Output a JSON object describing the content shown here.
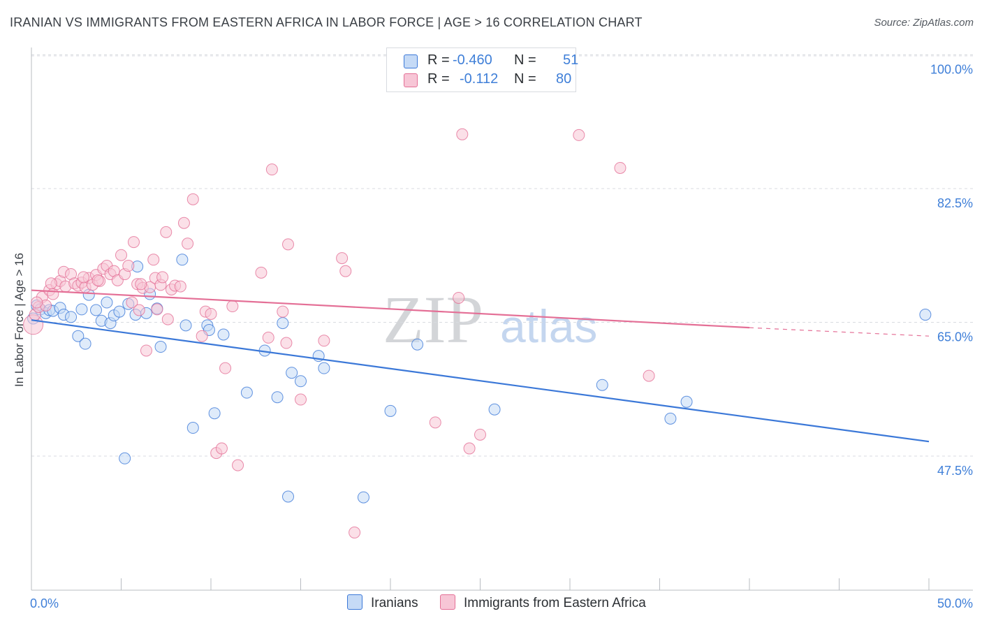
{
  "header": {
    "title": "IRANIAN VS IMMIGRANTS FROM EASTERN AFRICA IN LABOR FORCE | AGE > 16 CORRELATION CHART",
    "source": "Source: ZipAtlas.com"
  },
  "legend": {
    "rows": [
      {
        "r_label": "R =",
        "r_value": "-0.460",
        "n_label": "N =",
        "n_value": "51"
      },
      {
        "r_label": "R =",
        "r_value": "-0.112",
        "n_label": "N =",
        "n_value": "80"
      }
    ]
  },
  "watermark": {
    "part1": "ZIP",
    "part2": "atlas"
  },
  "colors": {
    "blue": "#3b78d8",
    "blue_fill": "#c5daf6",
    "pink": "#e46f96",
    "pink_fill": "#f7c6d6",
    "axis_text": "#3f7fd8",
    "grid": "#d8dbe0"
  },
  "chart_data": {
    "type": "scatter",
    "title": "IRANIAN VS IMMIGRANTS FROM EASTERN AFRICA IN LABOR FORCE | AGE > 16 CORRELATION CHART",
    "xlabel": "",
    "ylabel": "In Labor Force | Age > 16",
    "xlim": [
      0,
      50
    ],
    "ylim": [
      32.5,
      102
    ],
    "x_tick_labels": [
      "0.0%",
      "50.0%"
    ],
    "y_ticks": [
      47.5,
      65.0,
      82.5,
      100.0
    ],
    "y_tick_labels": [
      "47.5%",
      "65.0%",
      "82.5%",
      "100.0%"
    ],
    "grid": true,
    "legend_position": "bottom",
    "series": [
      {
        "name": "Iranians",
        "color": "#3b78d8",
        "r": -0.46,
        "n": 51,
        "trend": {
          "x0": 0,
          "y0": 65.3,
          "x1": 50,
          "y1": 49.4
        },
        "points": [
          [
            0.1,
            65.5
          ],
          [
            0.3,
            67.2
          ],
          [
            0.5,
            66.7
          ],
          [
            0.8,
            66.2
          ],
          [
            1.0,
            66.6
          ],
          [
            1.2,
            66.5
          ],
          [
            1.6,
            66.9
          ],
          [
            1.8,
            66.0
          ],
          [
            2.2,
            65.7
          ],
          [
            2.6,
            63.2
          ],
          [
            2.8,
            66.7
          ],
          [
            3.0,
            62.2
          ],
          [
            3.2,
            68.6
          ],
          [
            3.6,
            66.6
          ],
          [
            3.9,
            65.2
          ],
          [
            4.2,
            67.6
          ],
          [
            4.4,
            64.9
          ],
          [
            4.6,
            65.9
          ],
          [
            4.9,
            66.4
          ],
          [
            5.2,
            47.2
          ],
          [
            5.4,
            67.4
          ],
          [
            5.8,
            66.0
          ],
          [
            5.9,
            72.3
          ],
          [
            6.4,
            66.2
          ],
          [
            6.6,
            68.7
          ],
          [
            7.0,
            66.8
          ],
          [
            7.2,
            61.8
          ],
          [
            8.4,
            73.2
          ],
          [
            8.6,
            64.6
          ],
          [
            9.0,
            51.2
          ],
          [
            9.8,
            64.6
          ],
          [
            9.9,
            64.0
          ],
          [
            10.2,
            53.1
          ],
          [
            10.7,
            63.4
          ],
          [
            12.0,
            55.8
          ],
          [
            13.0,
            61.3
          ],
          [
            13.7,
            55.2
          ],
          [
            14.0,
            64.9
          ],
          [
            14.3,
            42.2
          ],
          [
            14.5,
            58.4
          ],
          [
            15.0,
            57.3
          ],
          [
            16.0,
            60.6
          ],
          [
            16.3,
            59.0
          ],
          [
            18.5,
            42.1
          ],
          [
            20.0,
            53.4
          ],
          [
            21.5,
            62.1
          ],
          [
            25.8,
            53.6
          ],
          [
            31.8,
            56.8
          ],
          [
            35.6,
            52.4
          ],
          [
            36.5,
            54.6
          ],
          [
            49.8,
            66.0
          ]
        ]
      },
      {
        "name": "Immigrants from Eastern Africa",
        "color": "#e46f96",
        "r": -0.112,
        "n": 80,
        "trend": {
          "x0": 0,
          "y0": 69.2,
          "x1": 40,
          "y1": 64.3
        },
        "trend_dashed_to": {
          "x": 50,
          "y": 63.2
        },
        "points": [
          [
            0.1,
            64.7
          ],
          [
            0.2,
            66.0
          ],
          [
            0.4,
            67.0
          ],
          [
            0.6,
            68.3
          ],
          [
            0.8,
            67.2
          ],
          [
            1.0,
            69.2
          ],
          [
            1.2,
            68.7
          ],
          [
            1.4,
            70.0
          ],
          [
            1.6,
            70.4
          ],
          [
            1.8,
            71.6
          ],
          [
            1.9,
            69.7
          ],
          [
            2.2,
            71.3
          ],
          [
            2.4,
            70.1
          ],
          [
            2.6,
            69.8
          ],
          [
            2.8,
            70.2
          ],
          [
            3.0,
            69.6
          ],
          [
            3.2,
            70.8
          ],
          [
            3.4,
            69.9
          ],
          [
            3.6,
            71.2
          ],
          [
            3.8,
            70.4
          ],
          [
            4.0,
            72.0
          ],
          [
            4.2,
            72.4
          ],
          [
            4.4,
            71.3
          ],
          [
            4.6,
            71.7
          ],
          [
            4.8,
            70.5
          ],
          [
            5.0,
            73.8
          ],
          [
            5.2,
            71.3
          ],
          [
            5.4,
            72.4
          ],
          [
            5.6,
            67.6
          ],
          [
            5.7,
            75.5
          ],
          [
            5.9,
            70.0
          ],
          [
            6.0,
            66.6
          ],
          [
            6.2,
            69.5
          ],
          [
            6.4,
            61.3
          ],
          [
            6.6,
            69.6
          ],
          [
            6.8,
            73.2
          ],
          [
            6.9,
            70.8
          ],
          [
            7.0,
            66.7
          ],
          [
            7.2,
            69.9
          ],
          [
            7.3,
            70.9
          ],
          [
            7.5,
            76.8
          ],
          [
            7.6,
            65.4
          ],
          [
            7.8,
            69.3
          ],
          [
            8.0,
            69.8
          ],
          [
            8.3,
            69.7
          ],
          [
            8.5,
            78.0
          ],
          [
            8.7,
            75.3
          ],
          [
            9.0,
            81.1
          ],
          [
            9.5,
            63.2
          ],
          [
            9.7,
            66.4
          ],
          [
            10.0,
            66.1
          ],
          [
            10.3,
            47.9
          ],
          [
            10.6,
            48.5
          ],
          [
            10.8,
            59.0
          ],
          [
            11.2,
            67.1
          ],
          [
            11.5,
            46.3
          ],
          [
            12.8,
            71.5
          ],
          [
            13.2,
            63.0
          ],
          [
            13.4,
            85.0
          ],
          [
            14.0,
            66.4
          ],
          [
            14.2,
            62.3
          ],
          [
            14.3,
            75.2
          ],
          [
            15.0,
            54.9
          ],
          [
            16.3,
            62.6
          ],
          [
            17.3,
            73.4
          ],
          [
            17.5,
            71.7
          ],
          [
            18.0,
            37.5
          ],
          [
            22.5,
            51.9
          ],
          [
            23.8,
            68.2
          ],
          [
            24.0,
            89.6
          ],
          [
            24.4,
            48.5
          ],
          [
            25.0,
            50.3
          ],
          [
            30.5,
            89.5
          ],
          [
            32.8,
            85.2
          ],
          [
            34.4,
            58.0
          ],
          [
            0.3,
            67.6
          ],
          [
            1.1,
            70.1
          ],
          [
            2.9,
            70.9
          ],
          [
            6.1,
            70.0
          ],
          [
            3.7,
            70.5
          ]
        ]
      }
    ]
  }
}
